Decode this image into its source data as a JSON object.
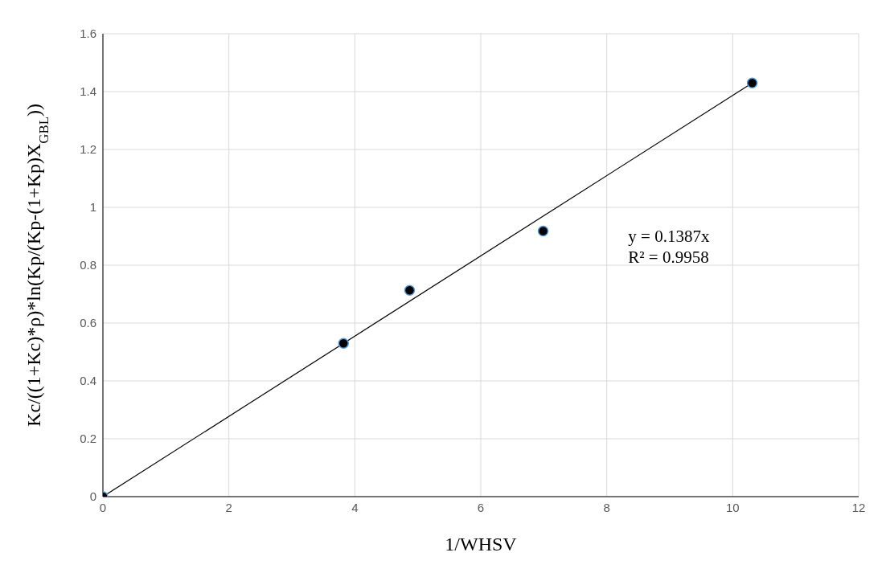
{
  "chart_data": {
    "type": "scatter",
    "xlabel": "1/WHSV",
    "ylabel": "Kc/((1+Kc)*ρ)*ln(Kp/(Kp-(1+Kp)X$_{GBL}$))",
    "x": [
      0,
      3.82,
      4.87,
      6.99,
      10.31
    ],
    "series": [
      {
        "color": "#000000",
        "values": [
          0,
          0.53,
          0.713,
          0.918,
          1.43
        ],
        "marker": "circle"
      },
      {
        "type": "line",
        "color": "#000000",
        "x": [
          0,
          10.31
        ],
        "values": [
          0,
          1.43
        ],
        "marker": "none"
      }
    ],
    "annotations": [
      "y = 0.1387x",
      "R² = 0.9958"
    ],
    "xlim": [
      0,
      12
    ],
    "xticks": [
      0,
      2,
      4,
      6,
      8,
      10,
      12
    ],
    "ylim": [
      0,
      1.6
    ],
    "yticks": [
      0,
      0.2,
      0.4,
      0.6,
      0.8,
      1,
      1.2,
      1.4,
      1.6
    ],
    "grid": true
  }
}
